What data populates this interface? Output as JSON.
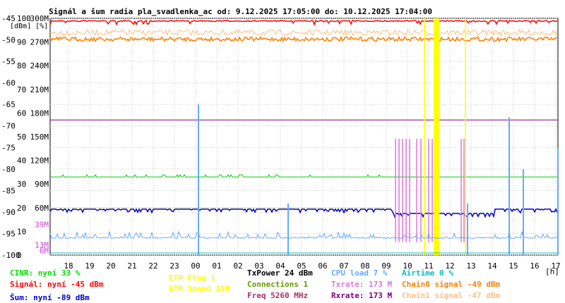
{
  "chart_data": {
    "type": "line",
    "title": "Signál a šum radia pla_svadlenka_ac od: 9.12.2025 17:05:00 do: 10.12.2025 17:04:00",
    "y_unit_labels": [
      "[dBm]",
      "[%]"
    ],
    "x_unit": "[h]",
    "x_ticks": [
      "18",
      "19",
      "20",
      "21",
      "22",
      "23",
      "00",
      "01",
      "02",
      "03",
      "04",
      "05",
      "06",
      "07",
      "08",
      "09",
      "10",
      "11",
      "12",
      "13",
      "14",
      "15",
      "16",
      "17"
    ],
    "y_ticks_dbm": [
      "-45",
      "-50",
      "-55",
      "-60",
      "-65",
      "-70",
      "-75",
      "-80",
      "-85",
      "-90",
      "-95",
      "-100"
    ],
    "y_ticks_pct": [
      "100",
      "90",
      "80",
      "70",
      "60",
      "50",
      "40",
      "30",
      "20",
      "10",
      "0"
    ],
    "y_ticks_rate": [
      "300M",
      "270M",
      "240M",
      "210M",
      "180M",
      "150M",
      "120M",
      "90M",
      "60M",
      "39M",
      "13M",
      "6M"
    ],
    "ylim_dbm": [
      -100,
      -45
    ],
    "grid": true,
    "series": [
      {
        "name": "Signál",
        "level_dbm": -45,
        "color": "#ff0000"
      },
      {
        "name": "Chain0 signal",
        "level_dbm": -49,
        "color": "#ff7f00"
      },
      {
        "name": "Chain1 signal",
        "level_dbm": -47,
        "color": "#ffbf80"
      },
      {
        "name": "Šum",
        "level_dbm": -89,
        "color": "#0000ff"
      },
      {
        "name": "CINR",
        "level_pct": 33,
        "color": "#00cc00"
      },
      {
        "name": "Txrate",
        "level_mbps": 173,
        "color": "#dd77dd"
      },
      {
        "name": "Rxrate",
        "level_mbps": 173,
        "color": "#800080"
      },
      {
        "name": "CPU load",
        "level_pct": 7,
        "color": "#66aaff"
      },
      {
        "name": "Airtime",
        "level_pct": 0,
        "color": "#00c0c0"
      },
      {
        "name": "ETH Plug",
        "value": 1,
        "color": "#ffff00"
      }
    ]
  },
  "legend": {
    "cinr": "CINR: nyní 33 %",
    "signal": "Signál: nyní -45 dBm",
    "noise": "Šum: nyní -89 dBm",
    "eth_plug": "ETH Plug 1",
    "eth_speed": "ETH Speed 100",
    "txpower": "TxPower 24 dBm",
    "connections": "Connections 1",
    "freq": "Freq 5260 MHz",
    "cpu": "CPU load 7 %",
    "txrate": "Txrate: 173 M",
    "rxrate": "Rxrate: 173 M",
    "airtime": "Airtime 0 %",
    "chain0": "Chain0 signal -49 dBm",
    "chain1": "Chain1 signal -47 dBm"
  },
  "colors": {
    "cinr": "#00dd00",
    "signal": "#ff0000",
    "noise": "#0000cc",
    "eth": "#ffff00",
    "txpower": "#000000",
    "connections": "#669900",
    "freq": "#aa3366",
    "cpu": "#66aaff",
    "txrate": "#dd77dd",
    "rxrate": "#800080",
    "airtime": "#00c0c0",
    "chain0": "#ff7f00",
    "chain1": "#ffbf80"
  }
}
